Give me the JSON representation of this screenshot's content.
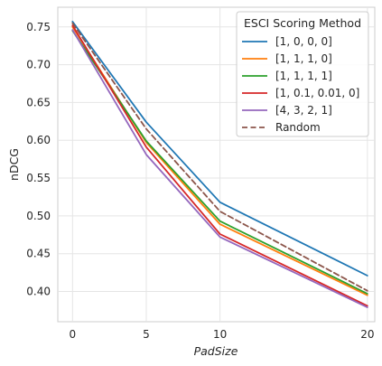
{
  "chart_data": {
    "type": "line",
    "title": "",
    "xlabel": "PadSize",
    "ylabel": "nDCG",
    "x": [
      0,
      5,
      10,
      20
    ],
    "x_ticks": [
      "0",
      "5",
      "10",
      "20"
    ],
    "xlim": [
      -1,
      20.5
    ],
    "y_ticks": [
      "0.40",
      "0.45",
      "0.50",
      "0.55",
      "0.60",
      "0.65",
      "0.70",
      "0.75"
    ],
    "ylim": [
      0.36,
      0.776
    ],
    "grid": true,
    "legend": {
      "title": "ESCI Scoring Method",
      "placement": "top-right"
    },
    "series": [
      {
        "name": "[1, 0, 0, 0]",
        "values": [
          0.757,
          0.624,
          0.518,
          0.421
        ],
        "color": "#1f77b4",
        "dash": "solid"
      },
      {
        "name": "[1, 1, 1, 0]",
        "values": [
          0.75,
          0.597,
          0.489,
          0.395
        ],
        "color": "#ff7f0e",
        "dash": "solid"
      },
      {
        "name": "[1, 1, 1, 1]",
        "values": [
          0.745,
          0.599,
          0.493,
          0.397
        ],
        "color": "#2ca02c",
        "dash": "solid"
      },
      {
        "name": "[1, 0.1, 0.01, 0]",
        "values": [
          0.752,
          0.591,
          0.476,
          0.381
        ],
        "color": "#d62728",
        "dash": "solid"
      },
      {
        "name": "[4, 3, 2, 1]",
        "values": [
          0.746,
          0.581,
          0.472,
          0.379
        ],
        "color": "#9467bd",
        "dash": "solid"
      },
      {
        "name": "Random",
        "values": [
          0.755,
          0.615,
          0.506,
          0.401
        ],
        "color": "#8c564b",
        "dash": "dashed"
      }
    ]
  }
}
